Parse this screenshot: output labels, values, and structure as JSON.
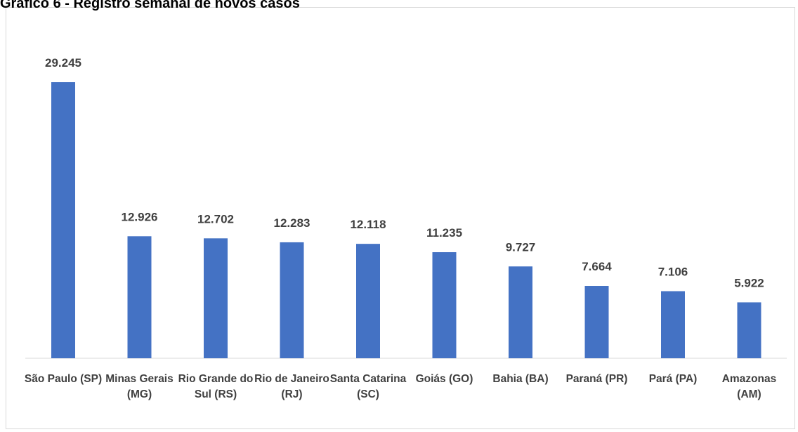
{
  "chart_data": {
    "type": "bar",
    "title": "Gráfico 6 - Registro semanal de novos casos",
    "categories": [
      "São Paulo (SP)",
      "Minas Gerais (MG)",
      "Rio Grande do Sul (RS)",
      "Rio de Janeiro (RJ)",
      "Santa Catarina (SC)",
      "Goiás (GO)",
      "Bahia (BA)",
      "Paraná (PR)",
      "Pará (PA)",
      "Amazonas (AM)"
    ],
    "values": [
      29245,
      12926,
      12702,
      12283,
      12118,
      11235,
      9727,
      7664,
      7106,
      5922
    ],
    "value_labels": [
      "29.245",
      "12.926",
      "12.702",
      "12.283",
      "12.118",
      "11.235",
      "9.727",
      "7.664",
      "7.106",
      "5.922"
    ],
    "color": "#4472c4"
  }
}
